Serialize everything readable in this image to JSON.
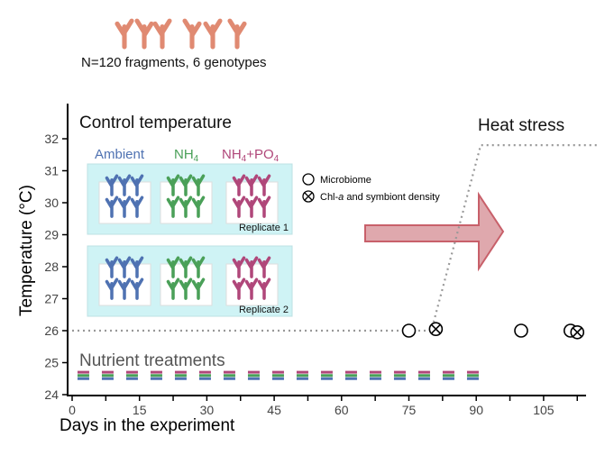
{
  "header": {
    "caption": "N=120 fragments, 6 genotypes"
  },
  "colors": {
    "coral": "#e08a72",
    "ambient": "#4f72b2",
    "nh4": "#4aa058",
    "nh4po4": "#b0477a",
    "tank": "#cff3f5",
    "arrow_fill": "#dfa8ad",
    "arrow_stroke": "#c8606a",
    "temp_line": "#999999"
  },
  "panel": {
    "control_title": "Control temperature",
    "heat_title": "Heat stress",
    "treatments": [
      "Ambient",
      "NH4",
      "NH4+PO4"
    ],
    "replicates": [
      "Replicate 1",
      "Replicate 2"
    ],
    "nutrient_label": "Nutrient treatments"
  },
  "legend": {
    "microbiome": "Microbiome",
    "chl": "Chl-a and symbiont density"
  },
  "chart_data": {
    "type": "line",
    "xlabel": "Days in the experiment",
    "ylabel": "Temperature (°C)",
    "xlim": [
      0,
      114
    ],
    "ylim": [
      24,
      32.5
    ],
    "xticks": [
      0,
      15,
      30,
      45,
      60,
      75,
      90,
      105
    ],
    "yticks": [
      24,
      25,
      26,
      27,
      28,
      29,
      30,
      31,
      32
    ],
    "temperature": [
      [
        0,
        26
      ],
      [
        80,
        26
      ],
      [
        91,
        31.8
      ],
      [
        117,
        31.8
      ]
    ],
    "microbiome_sampling": [
      [
        75,
        26
      ],
      [
        100,
        26
      ],
      [
        111,
        26
      ]
    ],
    "chl_sampling": [
      [
        81,
        26.05
      ],
      [
        112.5,
        25.95
      ]
    ],
    "nutrient_series": [
      {
        "name": "NH4+PO4",
        "y": 24.7,
        "x": [
          2,
          90
        ]
      },
      {
        "name": "NH4",
        "y": 24.6,
        "x": [
          2,
          90
        ]
      },
      {
        "name": "Ambient",
        "y": 24.5,
        "x": [
          2,
          90
        ]
      }
    ]
  }
}
